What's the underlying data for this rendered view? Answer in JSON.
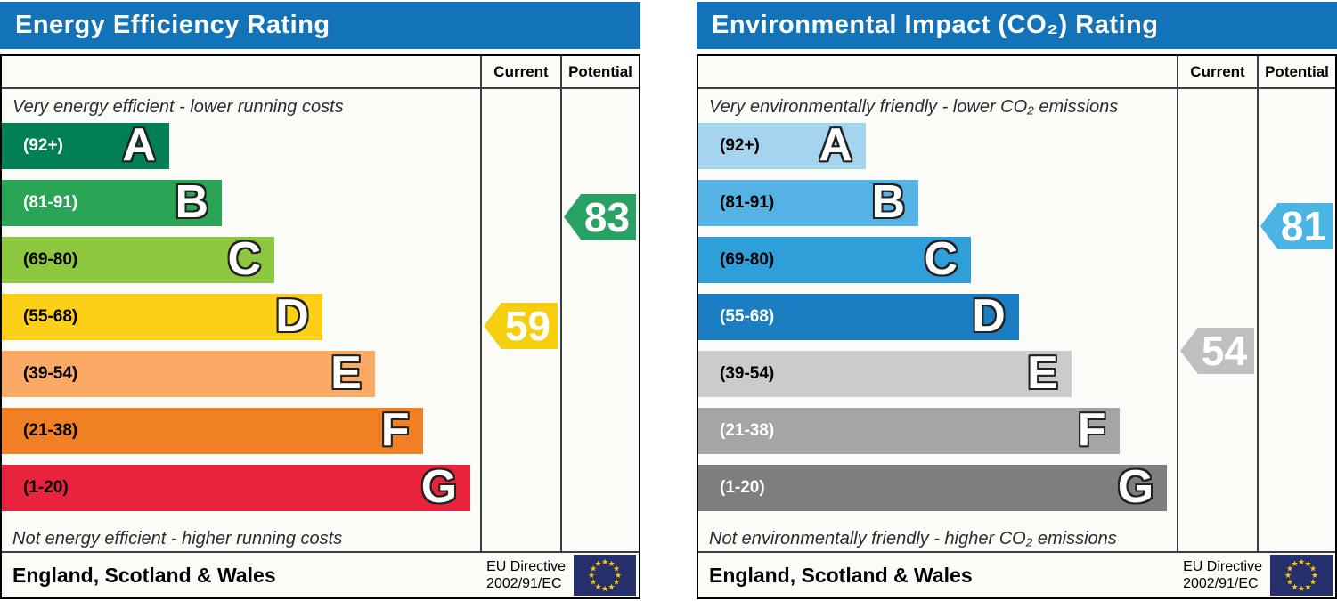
{
  "page": {
    "title_bar_color": "#1373b9",
    "table_background": "#fbfbf7",
    "flag_color": "#242f6b",
    "star_color": "#ffcc00"
  },
  "chart_data": [
    {
      "type": "bar",
      "title": "Energy Efficiency Rating",
      "header": {
        "current": "Current",
        "potential": "Potential"
      },
      "top_note": "Very energy efficient - lower running costs",
      "bottom_note": "Not energy efficient - higher running costs",
      "categories": [
        "A",
        "B",
        "C",
        "D",
        "E",
        "F",
        "G"
      ],
      "bands": [
        {
          "letter": "A",
          "range_label": "(92+)",
          "min": 92,
          "max": 100,
          "width_pct": 35,
          "color": "#008054",
          "label_color": "#ffffff"
        },
        {
          "letter": "B",
          "range_label": "(81-91)",
          "min": 81,
          "max": 91,
          "width_pct": 46,
          "color": "#2aa455",
          "label_color": "#ffffff"
        },
        {
          "letter": "C",
          "range_label": "(69-80)",
          "min": 69,
          "max": 80,
          "width_pct": 57,
          "color": "#8dc63f",
          "label_color": "#000000"
        },
        {
          "letter": "D",
          "range_label": "(55-68)",
          "min": 55,
          "max": 68,
          "width_pct": 67,
          "color": "#fcd016",
          "label_color": "#000000"
        },
        {
          "letter": "E",
          "range_label": "(39-54)",
          "min": 39,
          "max": 54,
          "width_pct": 78,
          "color": "#fbaa65",
          "label_color": "#000000"
        },
        {
          "letter": "F",
          "range_label": "(21-38)",
          "min": 21,
          "max": 38,
          "width_pct": 88,
          "color": "#f08023",
          "label_color": "#000000"
        },
        {
          "letter": "G",
          "range_label": "(1-20)",
          "min": 1,
          "max": 20,
          "width_pct": 98,
          "color": "#e9233c",
          "label_color": "#000000"
        }
      ],
      "current": {
        "value": 59,
        "arrow_color": "#f4ce0f",
        "text_color": "#ffffff"
      },
      "potential": {
        "value": 83,
        "arrow_color": "#28a164",
        "text_color": "#ffffff"
      },
      "footer": {
        "region": "England, Scotland & Wales",
        "directive_line1": "EU Directive",
        "directive_line2": "2002/91/EC"
      }
    },
    {
      "type": "bar",
      "title": "Environmental Impact (CO₂) Rating",
      "header": {
        "current": "Current",
        "potential": "Potential"
      },
      "top_note": "Very environmentally friendly - lower CO₂ emissions",
      "bottom_note": "Not environmentally friendly - higher CO₂ emissions",
      "categories": [
        "A",
        "B",
        "C",
        "D",
        "E",
        "F",
        "G"
      ],
      "bands": [
        {
          "letter": "A",
          "range_label": "(92+)",
          "min": 92,
          "max": 100,
          "width_pct": 35,
          "color": "#a5d5ee",
          "label_color": "#000000"
        },
        {
          "letter": "B",
          "range_label": "(81-91)",
          "min": 81,
          "max": 91,
          "width_pct": 46,
          "color": "#55b2e4",
          "label_color": "#000000"
        },
        {
          "letter": "C",
          "range_label": "(69-80)",
          "min": 69,
          "max": 80,
          "width_pct": 57,
          "color": "#2f9fda",
          "label_color": "#000000"
        },
        {
          "letter": "D",
          "range_label": "(55-68)",
          "min": 55,
          "max": 68,
          "width_pct": 67,
          "color": "#1b7dc2",
          "label_color": "#ffffff"
        },
        {
          "letter": "E",
          "range_label": "(39-54)",
          "min": 39,
          "max": 54,
          "width_pct": 78,
          "color": "#cbcbcb",
          "label_color": "#000000"
        },
        {
          "letter": "F",
          "range_label": "(21-38)",
          "min": 21,
          "max": 38,
          "width_pct": 88,
          "color": "#a5a5a5",
          "label_color": "#ffffff"
        },
        {
          "letter": "G",
          "range_label": "(1-20)",
          "min": 1,
          "max": 20,
          "width_pct": 98,
          "color": "#7e7e7e",
          "label_color": "#ffffff"
        }
      ],
      "current": {
        "value": 54,
        "arrow_color": "#bfbfbf",
        "text_color": "#ffffff"
      },
      "potential": {
        "value": 81,
        "arrow_color": "#4ab5e5",
        "text_color": "#ffffff"
      },
      "footer": {
        "region": "England, Scotland & Wales",
        "directive_line1": "EU Directive",
        "directive_line2": "2002/91/EC"
      }
    }
  ]
}
